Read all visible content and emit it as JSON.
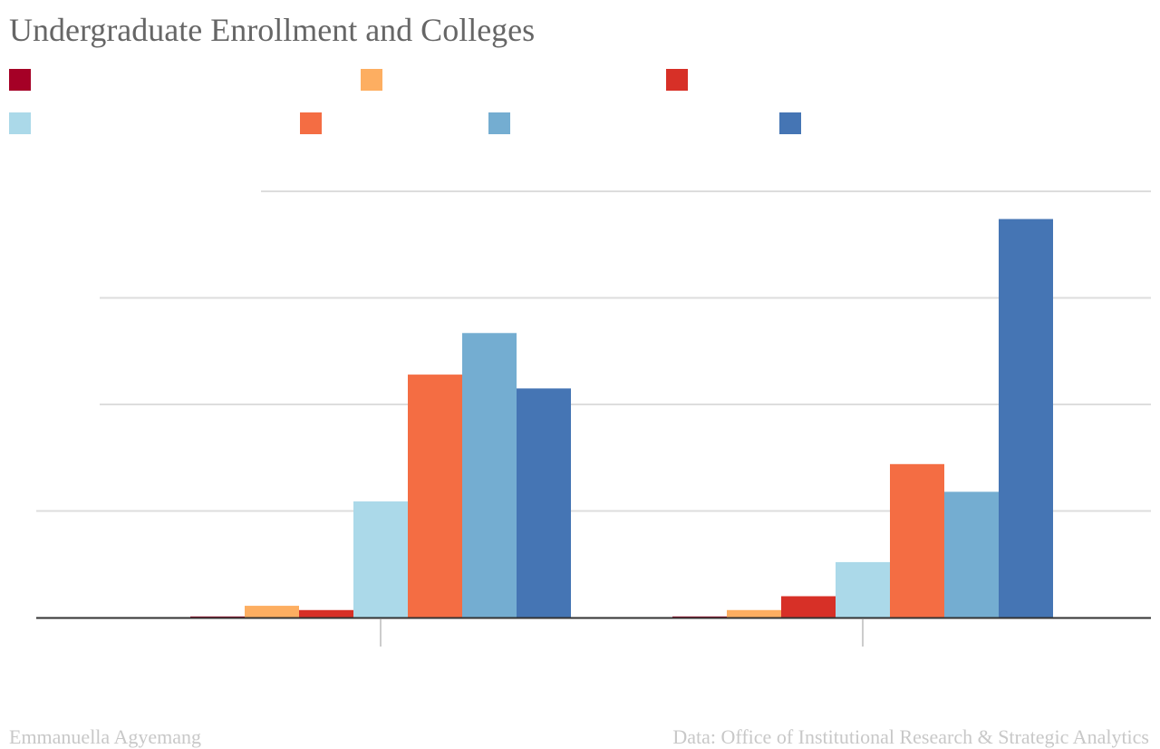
{
  "title": "Undergraduate Enrollment and Colleges",
  "credit": "Emmanuella Agyemang",
  "source": "Data: Office of Institutional Research & Strategic Analytics",
  "colors": {
    "grid": "#dddddd",
    "axis": "#333333",
    "tick": "#cccccc"
  },
  "chart_data": {
    "type": "bar",
    "title": "Undergraduate Enrollment and Colleges",
    "xlabel": "",
    "ylabel": "",
    "ylim": [
      0,
      4
    ],
    "grid": true,
    "legend_placement": "top",
    "categories": [
      "",
      ""
    ],
    "series": [
      {
        "name": "",
        "color": "#a50026",
        "values": [
          0.01,
          0.01
        ]
      },
      {
        "name": "",
        "color": "#fdae61",
        "values": [
          0.11,
          0.07
        ]
      },
      {
        "name": "",
        "color": "#d73027",
        "values": [
          0.07,
          0.2
        ]
      },
      {
        "name": "",
        "color": "#abd9e9",
        "values": [
          1.09,
          0.52
        ]
      },
      {
        "name": "",
        "color": "#f46d43",
        "values": [
          2.28,
          1.44
        ]
      },
      {
        "name": "",
        "color": "#74add1",
        "values": [
          2.67,
          1.18
        ]
      },
      {
        "name": "",
        "color": "#4575b4",
        "values": [
          2.15,
          3.74
        ]
      }
    ]
  }
}
